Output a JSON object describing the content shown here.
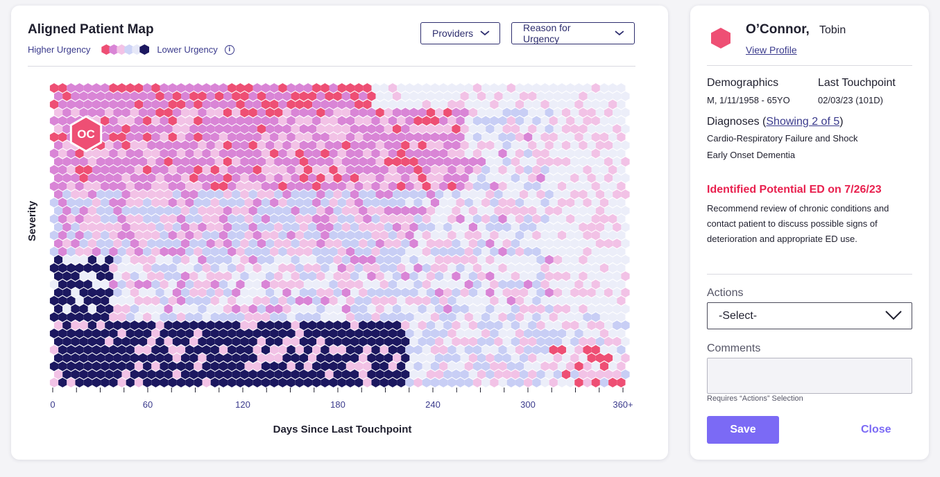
{
  "map": {
    "title": "Aligned Patient Map",
    "legend": {
      "higher_label": "Higher Urgency",
      "lower_label": "Lower Urgency",
      "scale_colors": [
        "#ee4f74",
        "#d985d6",
        "#f2c2e6",
        "#cdd3f6",
        "#e6e8f8",
        "#1c1860"
      ]
    },
    "providers_label": "Providers",
    "reason_label": "Reason for Urgency",
    "selected_patient_initials": "OC",
    "colors": {
      "red": "#ee4f74",
      "magenta": "#d985d6",
      "pink": "#f2c2e6",
      "periwinkle": "#c8cef5",
      "pale": "#eceef9",
      "navy": "#1c1860"
    }
  },
  "chart_data": {
    "type": "heatmap",
    "xlabel": "Days Since Last Touchpoint",
    "ylabel": "Severity",
    "x_ticks": [
      "0",
      "60",
      "120",
      "180",
      "240",
      "300",
      "360+"
    ],
    "x_tick_values": [
      0,
      60,
      120,
      180,
      240,
      300,
      360
    ],
    "xlim": [
      0,
      360
    ]
  },
  "patient": {
    "last_name": "O’Connor,",
    "first_name": "Tobin",
    "view_profile": "View Profile",
    "demographics_label": "Demographics",
    "demographics_value": "M, 1/11/1958 - 65YO",
    "last_touchpoint_label": "Last Touchpoint",
    "last_touchpoint_value": "02/03/23 (101D)",
    "diagnoses_label": "Diagnoses (",
    "diagnoses_link": "Showing 2 of 5",
    "diagnoses_close": ")",
    "diagnoses": [
      "Cardio-Respiratory Failure and Shock",
      "Early Onset Dementia"
    ],
    "alert_title": "Identified Potential ED on 7/26/23",
    "alert_body": "Recommend review of chronic conditions and contact patient to discuss possible signs of deterioration and appropriate ED use.",
    "actions_label": "Actions",
    "actions_selected": "-Select-",
    "comments_label": "Comments",
    "comments_helper": "Requires “Actions” Selection",
    "save_label": "Save",
    "close_label": "Close"
  }
}
